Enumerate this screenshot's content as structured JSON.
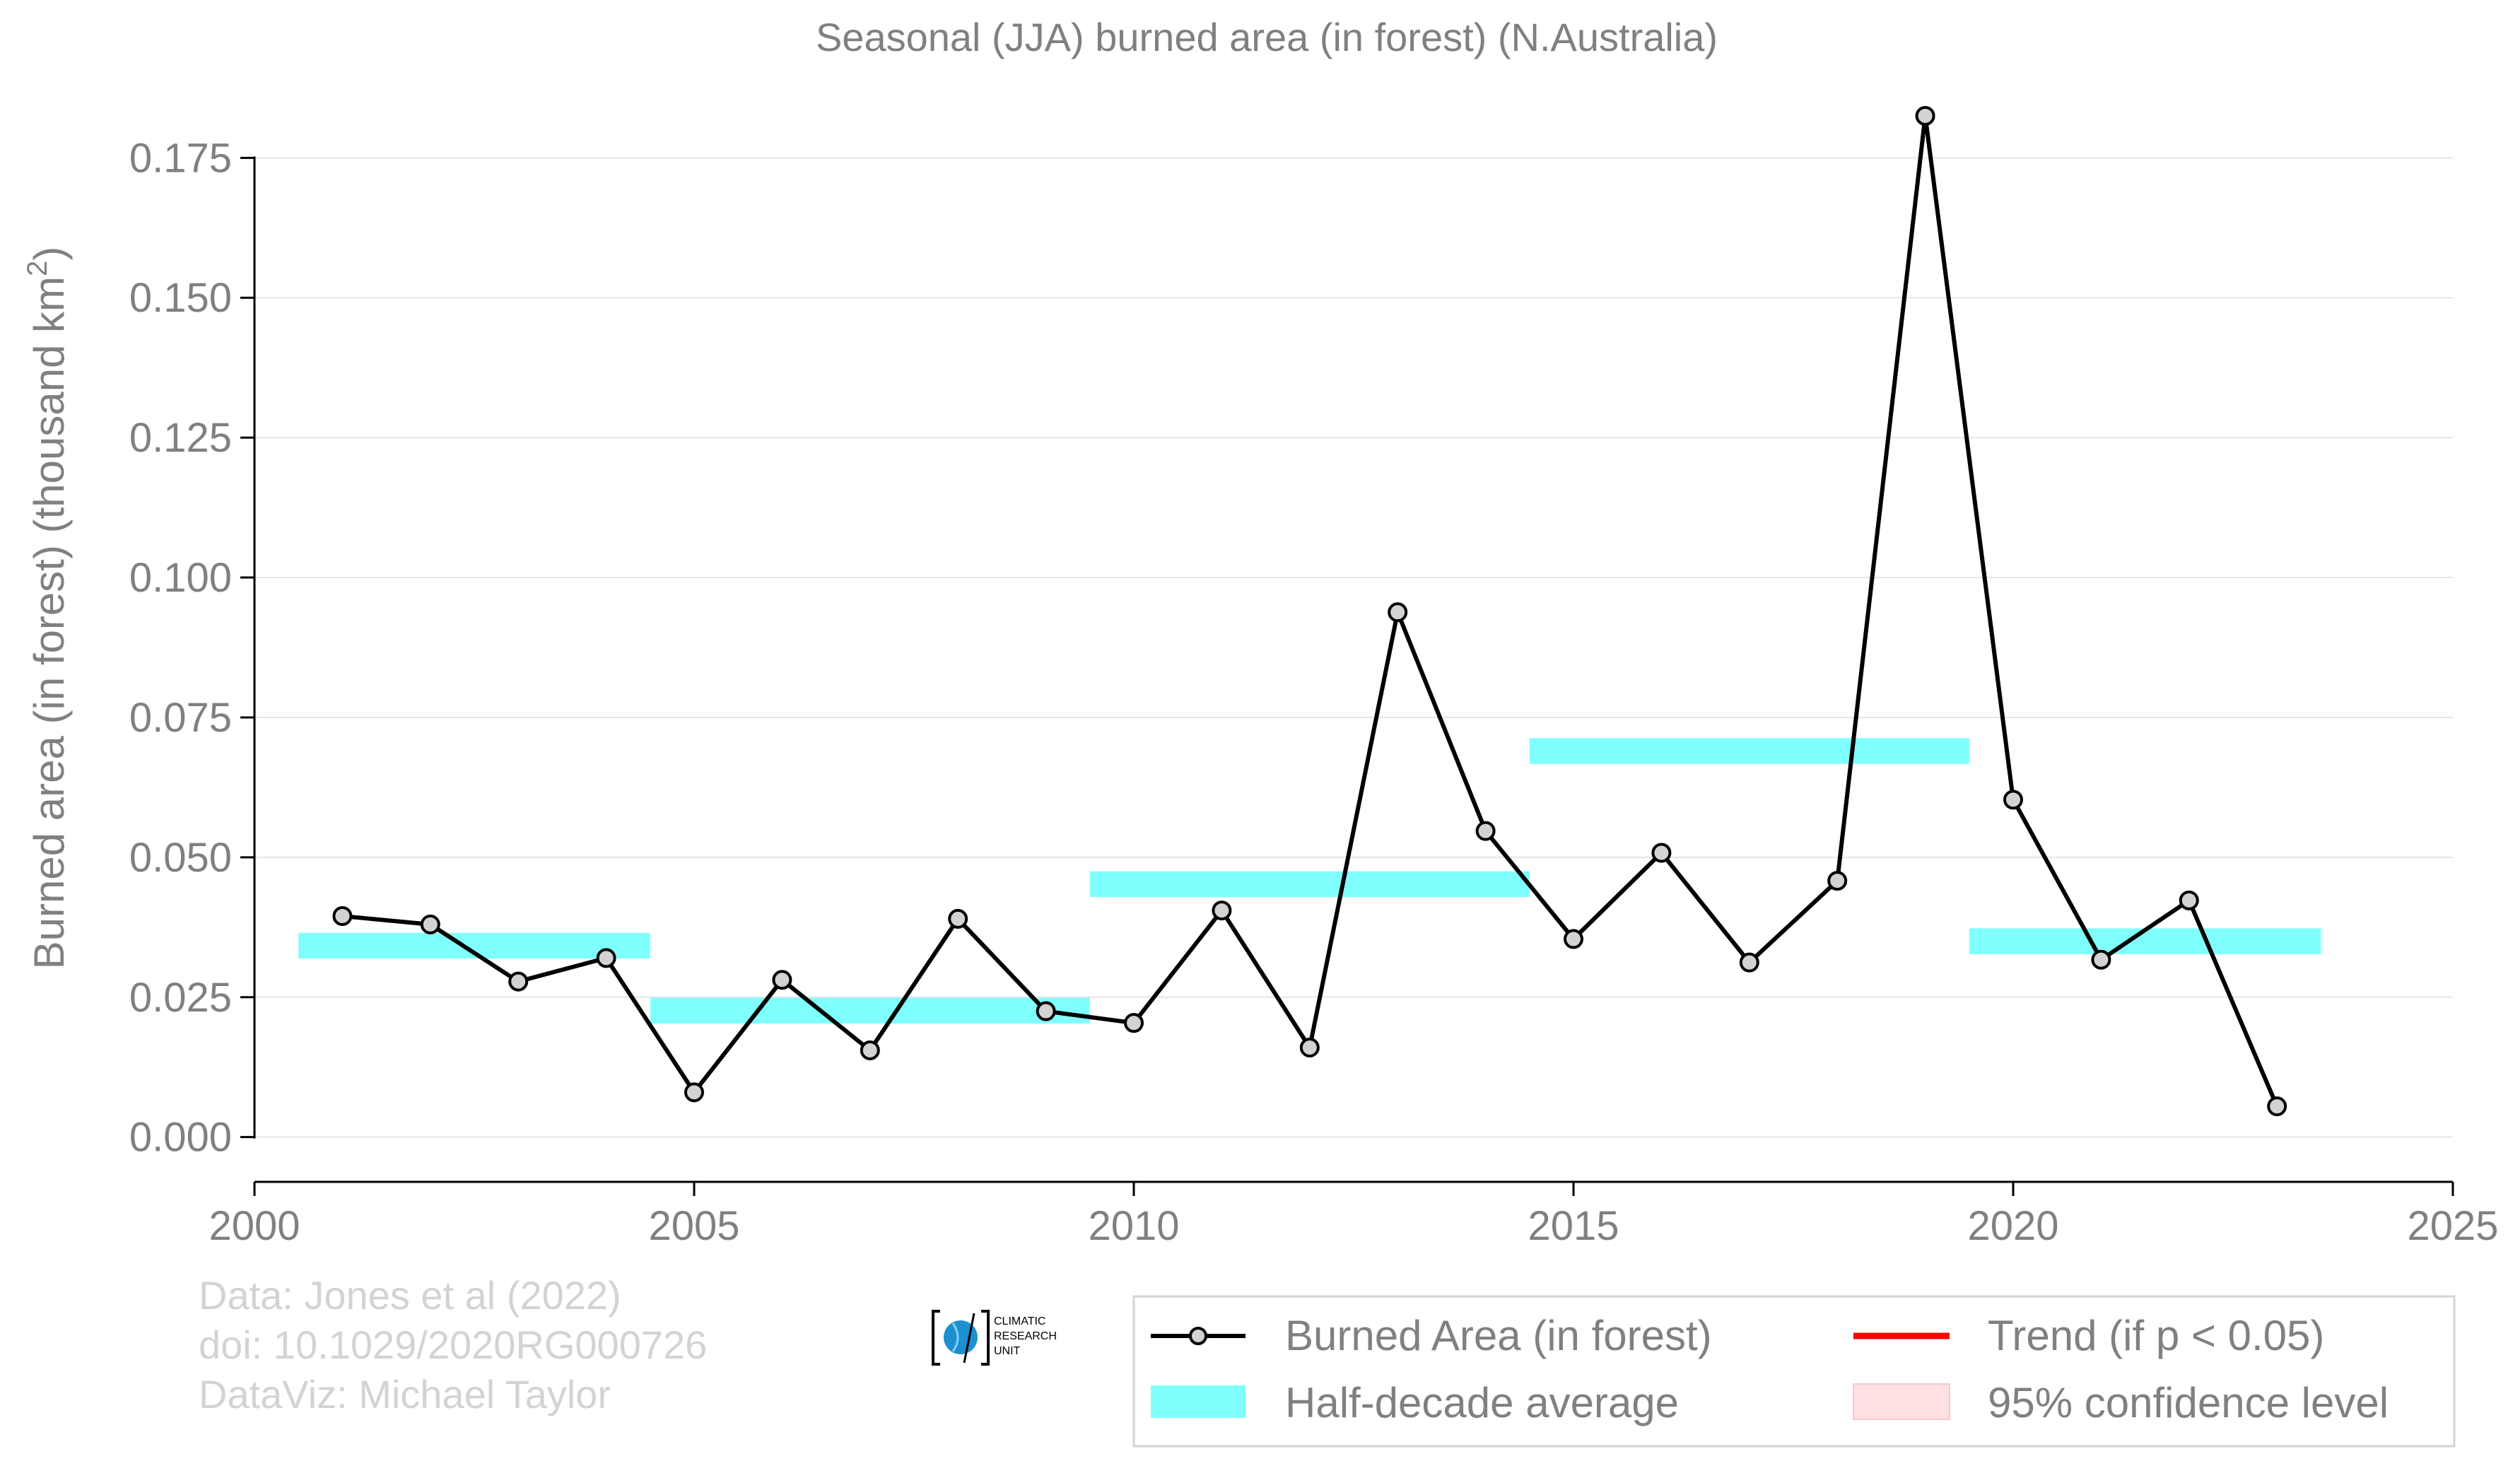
{
  "chart_data": {
    "type": "line",
    "title": "Seasonal (JJA) burned area (in forest) (N.Australia)",
    "ylabel_main": "Burned area (in forest) (thousand km",
    "ylabel_sup": "2",
    "ylabel_close": ")",
    "xlim": [
      2000,
      2025
    ],
    "ylim": [
      -0.008,
      0.183
    ],
    "xticks": [
      2000,
      2005,
      2010,
      2015,
      2020,
      2025
    ],
    "xtick_labels": [
      "2000",
      "2005",
      "2010",
      "2015",
      "2020",
      "2025"
    ],
    "yticks": [
      0,
      0.025,
      0.05,
      0.075,
      0.1,
      0.125,
      0.15,
      0.175
    ],
    "ytick_labels": [
      "0.000",
      "0.025",
      "0.050",
      "0.075",
      "0.100",
      "0.125",
      "0.150",
      "0.175"
    ],
    "grid": "horizontal",
    "legend_position": "bottom-right",
    "series": [
      {
        "name": "Burned Area (in forest)",
        "color": "#000000",
        "marker_fill": "#d3d3d3",
        "x": [
          2001,
          2002,
          2003,
          2004,
          2005,
          2006,
          2007,
          2008,
          2009,
          2010,
          2011,
          2012,
          2013,
          2014,
          2015,
          2016,
          2017,
          2018,
          2019,
          2020,
          2021,
          2022,
          2023
        ],
        "y": [
          0.0395,
          0.038,
          0.0278,
          0.032,
          0.008,
          0.0281,
          0.0155,
          0.039,
          0.0225,
          0.0204,
          0.0405,
          0.016,
          0.0938,
          0.0547,
          0.0354,
          0.0508,
          0.0312,
          0.0458,
          0.1825,
          0.0603,
          0.0317,
          0.0423,
          0.0055
        ]
      },
      {
        "name": "Half-decade average",
        "color": "#80ffff",
        "segments": [
          {
            "x0": 2000.5,
            "x1": 2004.5,
            "y": 0.0342
          },
          {
            "x0": 2004.5,
            "x1": 2009.5,
            "y": 0.0226
          },
          {
            "x0": 2009.5,
            "x1": 2014.5,
            "y": 0.0452
          },
          {
            "x0": 2014.5,
            "x1": 2019.5,
            "y": 0.069
          },
          {
            "x0": 2019.5,
            "x1": 2023.5,
            "y": 0.035
          }
        ]
      }
    ],
    "legend": [
      {
        "label": "Burned Area (in forest)",
        "kind": "line-marker",
        "color": "#000000"
      },
      {
        "label": "Trend (if p < 0.05)",
        "kind": "line",
        "color": "#ff0000"
      },
      {
        "label": "Half-decade average",
        "kind": "patch",
        "color": "#80ffff"
      },
      {
        "label": "95% confidence level",
        "kind": "patch",
        "color": "#ffe0e3"
      }
    ],
    "credits": [
      "Data: Jones et al (2022)",
      "doi: 10.1029/2020RG000726",
      "DataViz: Michael Taylor"
    ],
    "logo": {
      "lines": [
        "CLIMATIC",
        "RESEARCH",
        "UNIT"
      ]
    }
  }
}
